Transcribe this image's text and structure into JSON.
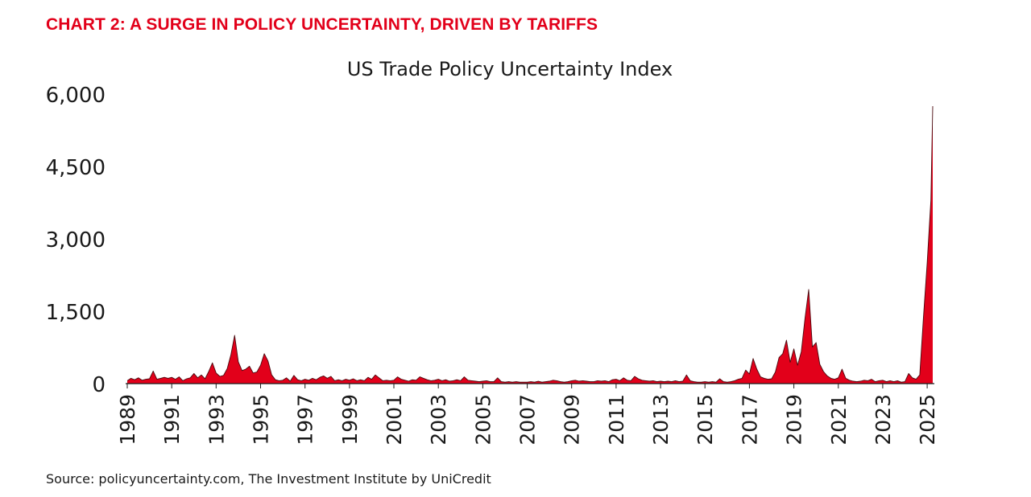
{
  "headline": "CHART 2: A SURGE IN POLICY UNCERTAINTY, DRIVEN BY TARIFFS",
  "source": "Source: policyuncertainty.com, The Investment Institute by UniCredit",
  "colors": {
    "headline": "#e2001a",
    "area_fill": "#e2001a",
    "area_stroke": "#4a0a0f",
    "axis": "#1a1a1a",
    "text": "#1a1a1a"
  },
  "chart_data": {
    "type": "area",
    "title": "US Trade Policy Uncertainty Index",
    "xlabel": "",
    "ylabel": "",
    "ylim": [
      0,
      6000
    ],
    "xlim": [
      "1989-01",
      "2025-04"
    ],
    "grid": false,
    "legend": "none",
    "y_ticks": [
      0,
      1500,
      3000,
      4500,
      6000
    ],
    "y_tick_labels": [
      "0",
      "1,500",
      "3,000",
      "4,500",
      "6,000"
    ],
    "x_tick_labels": [
      "1989",
      "1991",
      "1993",
      "1995",
      "1997",
      "1999",
      "2001",
      "2003",
      "2005",
      "2007",
      "2009",
      "2011",
      "2013",
      "2015",
      "2017",
      "2019",
      "2021",
      "2023",
      "2025"
    ],
    "series": [
      {
        "values": [
          [
            "1989-01",
            60
          ],
          [
            "1989-03",
            110
          ],
          [
            "1989-05",
            80
          ],
          [
            "1989-07",
            120
          ],
          [
            "1989-09",
            70
          ],
          [
            "1989-11",
            90
          ],
          [
            "1990-01",
            100
          ],
          [
            "1990-03",
            260
          ],
          [
            "1990-05",
            90
          ],
          [
            "1990-07",
            110
          ],
          [
            "1990-09",
            130
          ],
          [
            "1990-11",
            110
          ],
          [
            "1991-01",
            130
          ],
          [
            "1991-03",
            90
          ],
          [
            "1991-05",
            140
          ],
          [
            "1991-07",
            60
          ],
          [
            "1991-09",
            100
          ],
          [
            "1991-11",
            120
          ],
          [
            "1992-01",
            210
          ],
          [
            "1992-03",
            120
          ],
          [
            "1992-05",
            180
          ],
          [
            "1992-07",
            100
          ],
          [
            "1992-09",
            250
          ],
          [
            "1992-11",
            430
          ],
          [
            "1993-01",
            220
          ],
          [
            "1993-03",
            150
          ],
          [
            "1993-05",
            170
          ],
          [
            "1993-07",
            310
          ],
          [
            "1993-09",
            600
          ],
          [
            "1993-11",
            1000
          ],
          [
            "1994-01",
            450
          ],
          [
            "1994-03",
            270
          ],
          [
            "1994-05",
            300
          ],
          [
            "1994-07",
            360
          ],
          [
            "1994-09",
            220
          ],
          [
            "1994-11",
            240
          ],
          [
            "1995-01",
            380
          ],
          [
            "1995-03",
            620
          ],
          [
            "1995-05",
            470
          ],
          [
            "1995-07",
            180
          ],
          [
            "1995-09",
            80
          ],
          [
            "1995-11",
            60
          ],
          [
            "1996-01",
            70
          ],
          [
            "1996-03",
            120
          ],
          [
            "1996-05",
            50
          ],
          [
            "1996-07",
            170
          ],
          [
            "1996-09",
            80
          ],
          [
            "1996-11",
            60
          ],
          [
            "1997-01",
            90
          ],
          [
            "1997-03",
            70
          ],
          [
            "1997-05",
            110
          ],
          [
            "1997-07",
            80
          ],
          [
            "1997-09",
            130
          ],
          [
            "1997-11",
            160
          ],
          [
            "1998-01",
            110
          ],
          [
            "1998-03",
            150
          ],
          [
            "1998-05",
            60
          ],
          [
            "1998-07",
            80
          ],
          [
            "1998-09",
            60
          ],
          [
            "1998-11",
            90
          ],
          [
            "1999-01",
            70
          ],
          [
            "1999-03",
            100
          ],
          [
            "1999-05",
            60
          ],
          [
            "1999-07",
            80
          ],
          [
            "1999-09",
            60
          ],
          [
            "1999-11",
            130
          ],
          [
            "2000-01",
            90
          ],
          [
            "2000-03",
            180
          ],
          [
            "2000-05",
            120
          ],
          [
            "2000-07",
            60
          ],
          [
            "2000-09",
            70
          ],
          [
            "2000-11",
            60
          ],
          [
            "2001-01",
            70
          ],
          [
            "2001-03",
            140
          ],
          [
            "2001-05",
            90
          ],
          [
            "2001-07",
            70
          ],
          [
            "2001-09",
            50
          ],
          [
            "2001-11",
            80
          ],
          [
            "2002-01",
            70
          ],
          [
            "2002-03",
            140
          ],
          [
            "2002-05",
            110
          ],
          [
            "2002-07",
            80
          ],
          [
            "2002-09",
            60
          ],
          [
            "2002-11",
            70
          ],
          [
            "2003-01",
            90
          ],
          [
            "2003-03",
            60
          ],
          [
            "2003-05",
            80
          ],
          [
            "2003-07",
            50
          ],
          [
            "2003-09",
            60
          ],
          [
            "2003-11",
            80
          ],
          [
            "2004-01",
            60
          ],
          [
            "2004-03",
            140
          ],
          [
            "2004-05",
            70
          ],
          [
            "2004-07",
            60
          ],
          [
            "2004-09",
            50
          ],
          [
            "2004-11",
            40
          ],
          [
            "2005-01",
            50
          ],
          [
            "2005-03",
            60
          ],
          [
            "2005-05",
            40
          ],
          [
            "2005-07",
            40
          ],
          [
            "2005-09",
            120
          ],
          [
            "2005-11",
            40
          ],
          [
            "2006-01",
            30
          ],
          [
            "2006-03",
            40
          ],
          [
            "2006-05",
            30
          ],
          [
            "2006-07",
            40
          ],
          [
            "2006-09",
            30
          ],
          [
            "2006-11",
            30
          ],
          [
            "2007-01",
            30
          ],
          [
            "2007-03",
            40
          ],
          [
            "2007-05",
            30
          ],
          [
            "2007-07",
            50
          ],
          [
            "2007-09",
            30
          ],
          [
            "2007-11",
            40
          ],
          [
            "2008-01",
            50
          ],
          [
            "2008-03",
            70
          ],
          [
            "2008-05",
            60
          ],
          [
            "2008-07",
            40
          ],
          [
            "2008-09",
            30
          ],
          [
            "2008-11",
            40
          ],
          [
            "2009-01",
            60
          ],
          [
            "2009-03",
            70
          ],
          [
            "2009-05",
            50
          ],
          [
            "2009-07",
            60
          ],
          [
            "2009-09",
            50
          ],
          [
            "2009-11",
            40
          ],
          [
            "2010-01",
            40
          ],
          [
            "2010-03",
            60
          ],
          [
            "2010-05",
            50
          ],
          [
            "2010-07",
            60
          ],
          [
            "2010-09",
            40
          ],
          [
            "2010-11",
            80
          ],
          [
            "2011-01",
            90
          ],
          [
            "2011-03",
            60
          ],
          [
            "2011-05",
            120
          ],
          [
            "2011-07",
            70
          ],
          [
            "2011-09",
            60
          ],
          [
            "2011-11",
            150
          ],
          [
            "2012-01",
            100
          ],
          [
            "2012-03",
            70
          ],
          [
            "2012-05",
            60
          ],
          [
            "2012-07",
            50
          ],
          [
            "2012-09",
            60
          ],
          [
            "2012-11",
            40
          ],
          [
            "2013-01",
            50
          ],
          [
            "2013-03",
            40
          ],
          [
            "2013-05",
            50
          ],
          [
            "2013-07",
            40
          ],
          [
            "2013-09",
            60
          ],
          [
            "2013-11",
            40
          ],
          [
            "2014-01",
            50
          ],
          [
            "2014-03",
            180
          ],
          [
            "2014-05",
            60
          ],
          [
            "2014-07",
            40
          ],
          [
            "2014-09",
            30
          ],
          [
            "2014-11",
            30
          ],
          [
            "2015-01",
            40
          ],
          [
            "2015-03",
            30
          ],
          [
            "2015-05",
            40
          ],
          [
            "2015-07",
            30
          ],
          [
            "2015-09",
            100
          ],
          [
            "2015-11",
            40
          ],
          [
            "2016-01",
            30
          ],
          [
            "2016-03",
            40
          ],
          [
            "2016-05",
            60
          ],
          [
            "2016-07",
            90
          ],
          [
            "2016-09",
            110
          ],
          [
            "2016-11",
            280
          ],
          [
            "2017-01",
            200
          ],
          [
            "2017-03",
            520
          ],
          [
            "2017-05",
            300
          ],
          [
            "2017-07",
            140
          ],
          [
            "2017-09",
            110
          ],
          [
            "2017-11",
            90
          ],
          [
            "2018-01",
            100
          ],
          [
            "2018-03",
            240
          ],
          [
            "2018-05",
            540
          ],
          [
            "2018-07",
            620
          ],
          [
            "2018-09",
            900
          ],
          [
            "2018-11",
            440
          ],
          [
            "2019-01",
            720
          ],
          [
            "2019-03",
            380
          ],
          [
            "2019-05",
            660
          ],
          [
            "2019-07",
            1350
          ],
          [
            "2019-09",
            1950
          ],
          [
            "2019-11",
            760
          ],
          [
            "2020-01",
            850
          ],
          [
            "2020-03",
            400
          ],
          [
            "2020-05",
            250
          ],
          [
            "2020-07",
            160
          ],
          [
            "2020-09",
            110
          ],
          [
            "2020-11",
            90
          ],
          [
            "2021-01",
            120
          ],
          [
            "2021-03",
            300
          ],
          [
            "2021-05",
            110
          ],
          [
            "2021-07",
            70
          ],
          [
            "2021-09",
            50
          ],
          [
            "2021-11",
            40
          ],
          [
            "2022-01",
            50
          ],
          [
            "2022-03",
            70
          ],
          [
            "2022-05",
            60
          ],
          [
            "2022-07",
            90
          ],
          [
            "2022-09",
            40
          ],
          [
            "2022-11",
            60
          ],
          [
            "2023-01",
            70
          ],
          [
            "2023-03",
            40
          ],
          [
            "2023-05",
            60
          ],
          [
            "2023-07",
            40
          ],
          [
            "2023-09",
            60
          ],
          [
            "2023-11",
            30
          ],
          [
            "2024-01",
            40
          ],
          [
            "2024-03",
            210
          ],
          [
            "2024-05",
            120
          ],
          [
            "2024-07",
            90
          ],
          [
            "2024-09",
            180
          ],
          [
            "2024-11",
            1380
          ],
          [
            "2025-01",
            2500
          ],
          [
            "2025-03",
            3800
          ],
          [
            "2025-04",
            5750
          ]
        ]
      }
    ]
  }
}
